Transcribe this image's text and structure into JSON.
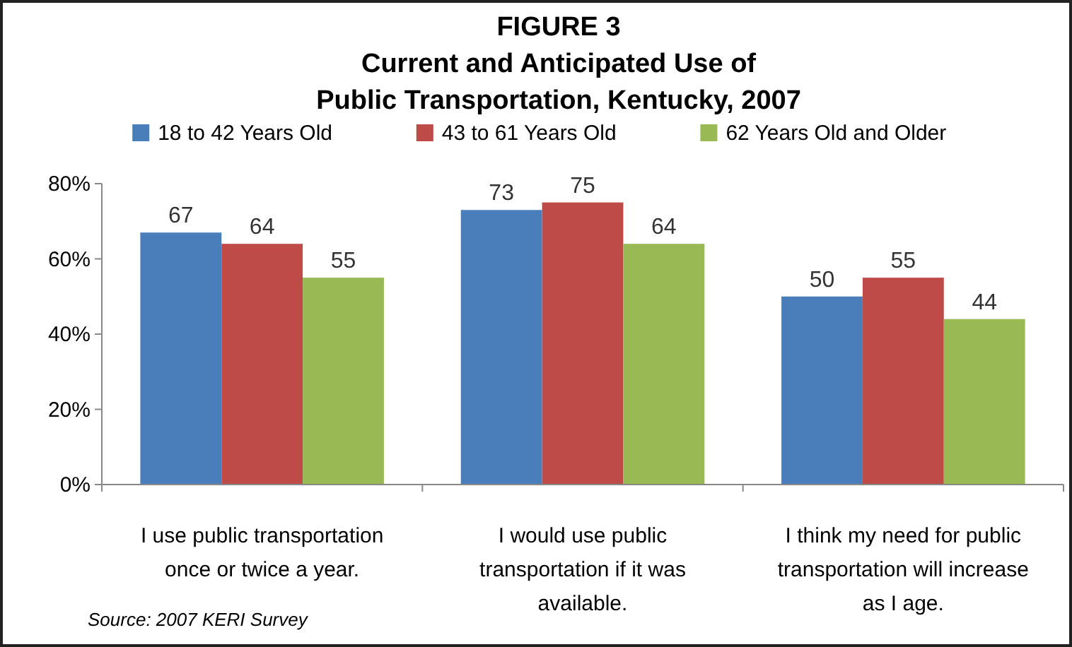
{
  "chart_data": {
    "type": "bar",
    "title": "FIGURE 3\nCurrent and Anticipated Use of\nPublic Transportation, Kentucky, 2007",
    "categories": [
      "I use public transportation\nonce or twice a year.",
      "I would use public\ntransportation if it was\navailable.",
      "I think my need for public\ntransportation will increase\nas I age."
    ],
    "series": [
      {
        "name": "18 to 42 Years Old",
        "color": "#4a7ebb",
        "values": [
          67,
          73,
          50
        ]
      },
      {
        "name": "43 to 61 Years Old",
        "color": "#be4b48",
        "values": [
          64,
          75,
          55
        ]
      },
      {
        "name": "62 Years Old and Older",
        "color": "#98b954",
        "values": [
          55,
          64,
          44
        ]
      }
    ],
    "ylim": [
      0,
      80
    ],
    "yticks": [
      {
        "value": 0,
        "label": "0%"
      },
      {
        "value": 20,
        "label": "20%"
      },
      {
        "value": 40,
        "label": "40%"
      },
      {
        "value": 60,
        "label": "60%"
      },
      {
        "value": 80,
        "label": "80%"
      }
    ],
    "data_labels": true,
    "legend": "top",
    "annotations": [
      "Source:  2007 KERI Survey"
    ]
  }
}
